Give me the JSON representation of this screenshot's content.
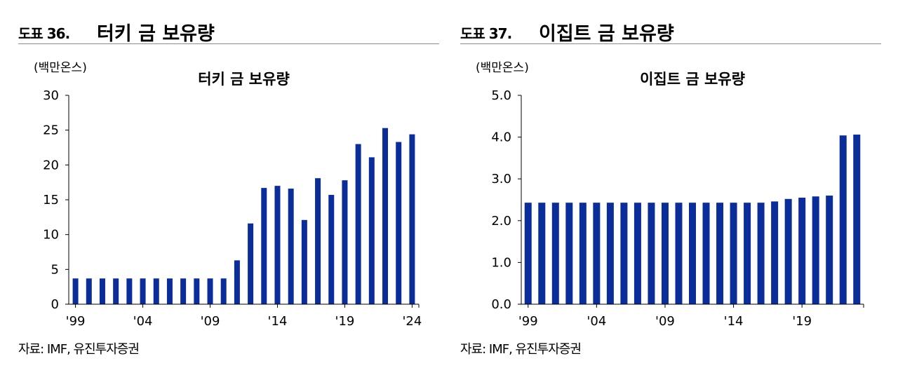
{
  "figures": [
    {
      "label": "도표 36.",
      "title": "터키 금 보유량",
      "source": "자료: IMF, 유진투자증권",
      "chart_data": {
        "type": "bar",
        "title": "터키 금 보유량",
        "unit": "(백만온스)",
        "xlabel": "",
        "ylabel": "",
        "ylim": [
          0,
          30
        ],
        "yticks": [
          "0",
          "5",
          "10",
          "15",
          "20",
          "25",
          "30"
        ],
        "categories": [
          "1999",
          "2000",
          "2001",
          "2002",
          "2003",
          "2004",
          "2005",
          "2006",
          "2007",
          "2008",
          "2009",
          "2010",
          "2011",
          "2012",
          "2013",
          "2014",
          "2015",
          "2016",
          "2017",
          "2018",
          "2019",
          "2020",
          "2021",
          "2022",
          "2023",
          "2024"
        ],
        "xtick_labels": [
          {
            "index": 0,
            "label": "'99"
          },
          {
            "index": 5,
            "label": "'04"
          },
          {
            "index": 10,
            "label": "'09"
          },
          {
            "index": 15,
            "label": "'14"
          },
          {
            "index": 20,
            "label": "'19"
          },
          {
            "index": 25,
            "label": "'24"
          }
        ],
        "values": [
          3.7,
          3.7,
          3.7,
          3.7,
          3.7,
          3.7,
          3.7,
          3.7,
          3.7,
          3.7,
          3.7,
          3.7,
          6.3,
          11.6,
          16.7,
          17.0,
          16.6,
          12.1,
          18.1,
          15.7,
          17.8,
          23.0,
          21.1,
          25.3,
          23.3,
          24.4
        ],
        "grid": false,
        "bar_color": "#0b2d9a"
      }
    },
    {
      "label": "도표 37.",
      "title": "이집트 금 보유량",
      "source": "자료: IMF, 유진투자증권",
      "chart_data": {
        "type": "bar",
        "title": "이집트 금 보유량",
        "unit": "(백만온스)",
        "xlabel": "",
        "ylabel": "",
        "ylim": [
          0,
          5
        ],
        "yticks": [
          "0.0",
          "1.0",
          "2.0",
          "3.0",
          "4.0",
          "5.0"
        ],
        "categories": [
          "1999",
          "2000",
          "2001",
          "2002",
          "2003",
          "2004",
          "2005",
          "2006",
          "2007",
          "2008",
          "2009",
          "2010",
          "2011",
          "2012",
          "2013",
          "2014",
          "2015",
          "2016",
          "2017",
          "2018",
          "2019",
          "2020",
          "2021",
          "2022",
          "2023"
        ],
        "xtick_labels": [
          {
            "index": 0,
            "label": "'99"
          },
          {
            "index": 5,
            "label": "'04"
          },
          {
            "index": 10,
            "label": "'09"
          },
          {
            "index": 15,
            "label": "'14"
          },
          {
            "index": 20,
            "label": "'19"
          }
        ],
        "values": [
          2.43,
          2.43,
          2.43,
          2.43,
          2.43,
          2.43,
          2.43,
          2.43,
          2.43,
          2.43,
          2.43,
          2.43,
          2.43,
          2.43,
          2.43,
          2.43,
          2.43,
          2.43,
          2.46,
          2.52,
          2.55,
          2.58,
          2.6,
          4.04,
          4.06
        ],
        "grid": false,
        "bar_color": "#0b2d9a"
      }
    }
  ]
}
